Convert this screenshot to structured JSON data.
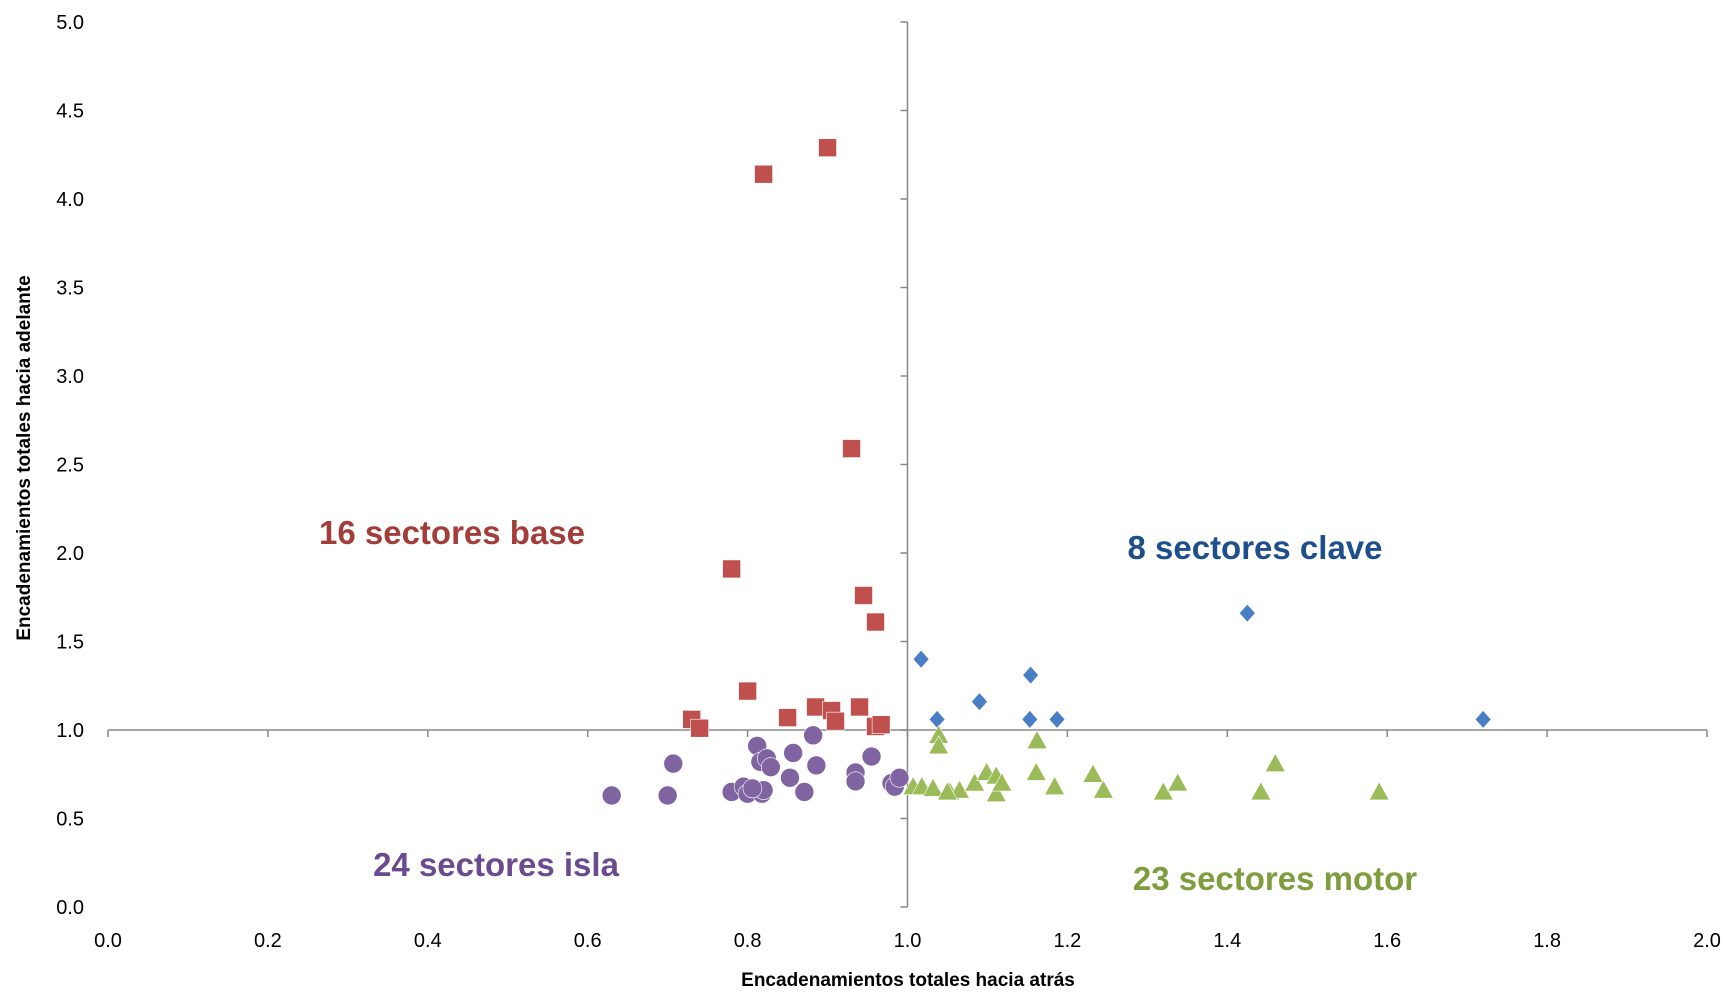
{
  "chart_data": {
    "type": "scatter",
    "x_label": "Encadenamientos  totales hacia atrás",
    "y_label": "Encadenamientos totales  hacia adelante",
    "xlim": [
      0,
      2.0
    ],
    "ylim": [
      0,
      5.0
    ],
    "xticks": [
      {
        "value": 0,
        "label": "0.0"
      },
      {
        "value": 0.2,
        "label": "0.2"
      },
      {
        "value": 0.4,
        "label": "0.4"
      },
      {
        "value": 0.6,
        "label": "0.6"
      },
      {
        "value": 0.8,
        "label": "0.8"
      },
      {
        "value": 1.0,
        "label": "1.0"
      },
      {
        "value": 1.2,
        "label": "1.2"
      },
      {
        "value": 1.4,
        "label": "1.4"
      },
      {
        "value": 1.6,
        "label": "1.6"
      },
      {
        "value": 1.8,
        "label": "1.8"
      },
      {
        "value": 2.0,
        "label": "2.0"
      }
    ],
    "yticks": [
      {
        "value": 0,
        "label": "0.0"
      },
      {
        "value": 0.5,
        "label": "0.5"
      },
      {
        "value": 1.0,
        "label": "1.0"
      },
      {
        "value": 1.5,
        "label": "1.5"
      },
      {
        "value": 2.0,
        "label": "2.0"
      },
      {
        "value": 2.5,
        "label": "2.5"
      },
      {
        "value": 3.0,
        "label": "3.0"
      },
      {
        "value": 3.5,
        "label": "3.5"
      },
      {
        "value": 4.0,
        "label": "4.0"
      },
      {
        "value": 4.5,
        "label": "4.5"
      },
      {
        "value": 5.0,
        "label": "5.0"
      }
    ],
    "x_axis_crosses_at": 1.0,
    "y_axis_crosses_at": 1.0,
    "series": [
      {
        "label": "16 sectores base",
        "color": "#c0504d",
        "label_color": "#a33d3a",
        "marker": "square",
        "x": [
          0.9,
          0.82,
          0.93,
          0.78,
          0.945,
          0.96,
          0.8,
          0.73,
          0.74,
          0.85,
          0.885,
          0.905,
          0.91,
          0.94,
          0.96,
          0.967
        ],
        "values": [
          4.29,
          4.14,
          2.59,
          1.91,
          1.76,
          1.61,
          1.22,
          1.06,
          1.01,
          1.07,
          1.13,
          1.11,
          1.05,
          1.13,
          1.02,
          1.03
        ]
      },
      {
        "label": "8 sectores clave",
        "color": "#4a7ec4",
        "label_color": "#1f4e8c",
        "marker": "diamond",
        "x": [
          1.017,
          1.037,
          1.09,
          1.154,
          1.153,
          1.187,
          1.425,
          1.72
        ],
        "values": [
          1.4,
          1.06,
          1.16,
          1.31,
          1.06,
          1.06,
          1.66,
          1.06
        ]
      },
      {
        "label": "24 sectores isla",
        "color": "#8064a2",
        "label_color": "#6a4b8f",
        "marker": "circle",
        "x": [
          0.63,
          0.7,
          0.707,
          0.78,
          0.795,
          0.8,
          0.812,
          0.816,
          0.818,
          0.824,
          0.829,
          0.82,
          0.853,
          0.857,
          0.871,
          0.882,
          0.886,
          0.935,
          0.935,
          0.955,
          0.98,
          0.984,
          0.99,
          0.806
        ],
        "values": [
          0.63,
          0.63,
          0.81,
          0.65,
          0.68,
          0.64,
          0.91,
          0.82,
          0.64,
          0.84,
          0.79,
          0.66,
          0.73,
          0.87,
          0.65,
          0.97,
          0.8,
          0.76,
          0.71,
          0.85,
          0.7,
          0.68,
          0.73,
          0.67
        ]
      },
      {
        "label": "23 sectores motor",
        "color": "#9bbb59",
        "label_color": "#7e9d3c",
        "marker": "triangle",
        "x": [
          1.007,
          1.018,
          1.032,
          1.039,
          1.039,
          1.053,
          1.065,
          1.084,
          1.099,
          1.111,
          1.111,
          1.118,
          1.161,
          1.162,
          1.184,
          1.232,
          1.245,
          1.32,
          1.338,
          1.442,
          1.46,
          1.59,
          1.05
        ],
        "values": [
          0.68,
          0.68,
          0.67,
          0.97,
          0.91,
          0.65,
          0.66,
          0.7,
          0.76,
          0.74,
          0.64,
          0.7,
          0.76,
          0.94,
          0.68,
          0.75,
          0.66,
          0.65,
          0.7,
          0.65,
          0.81,
          0.65,
          0.65
        ]
      }
    ]
  }
}
